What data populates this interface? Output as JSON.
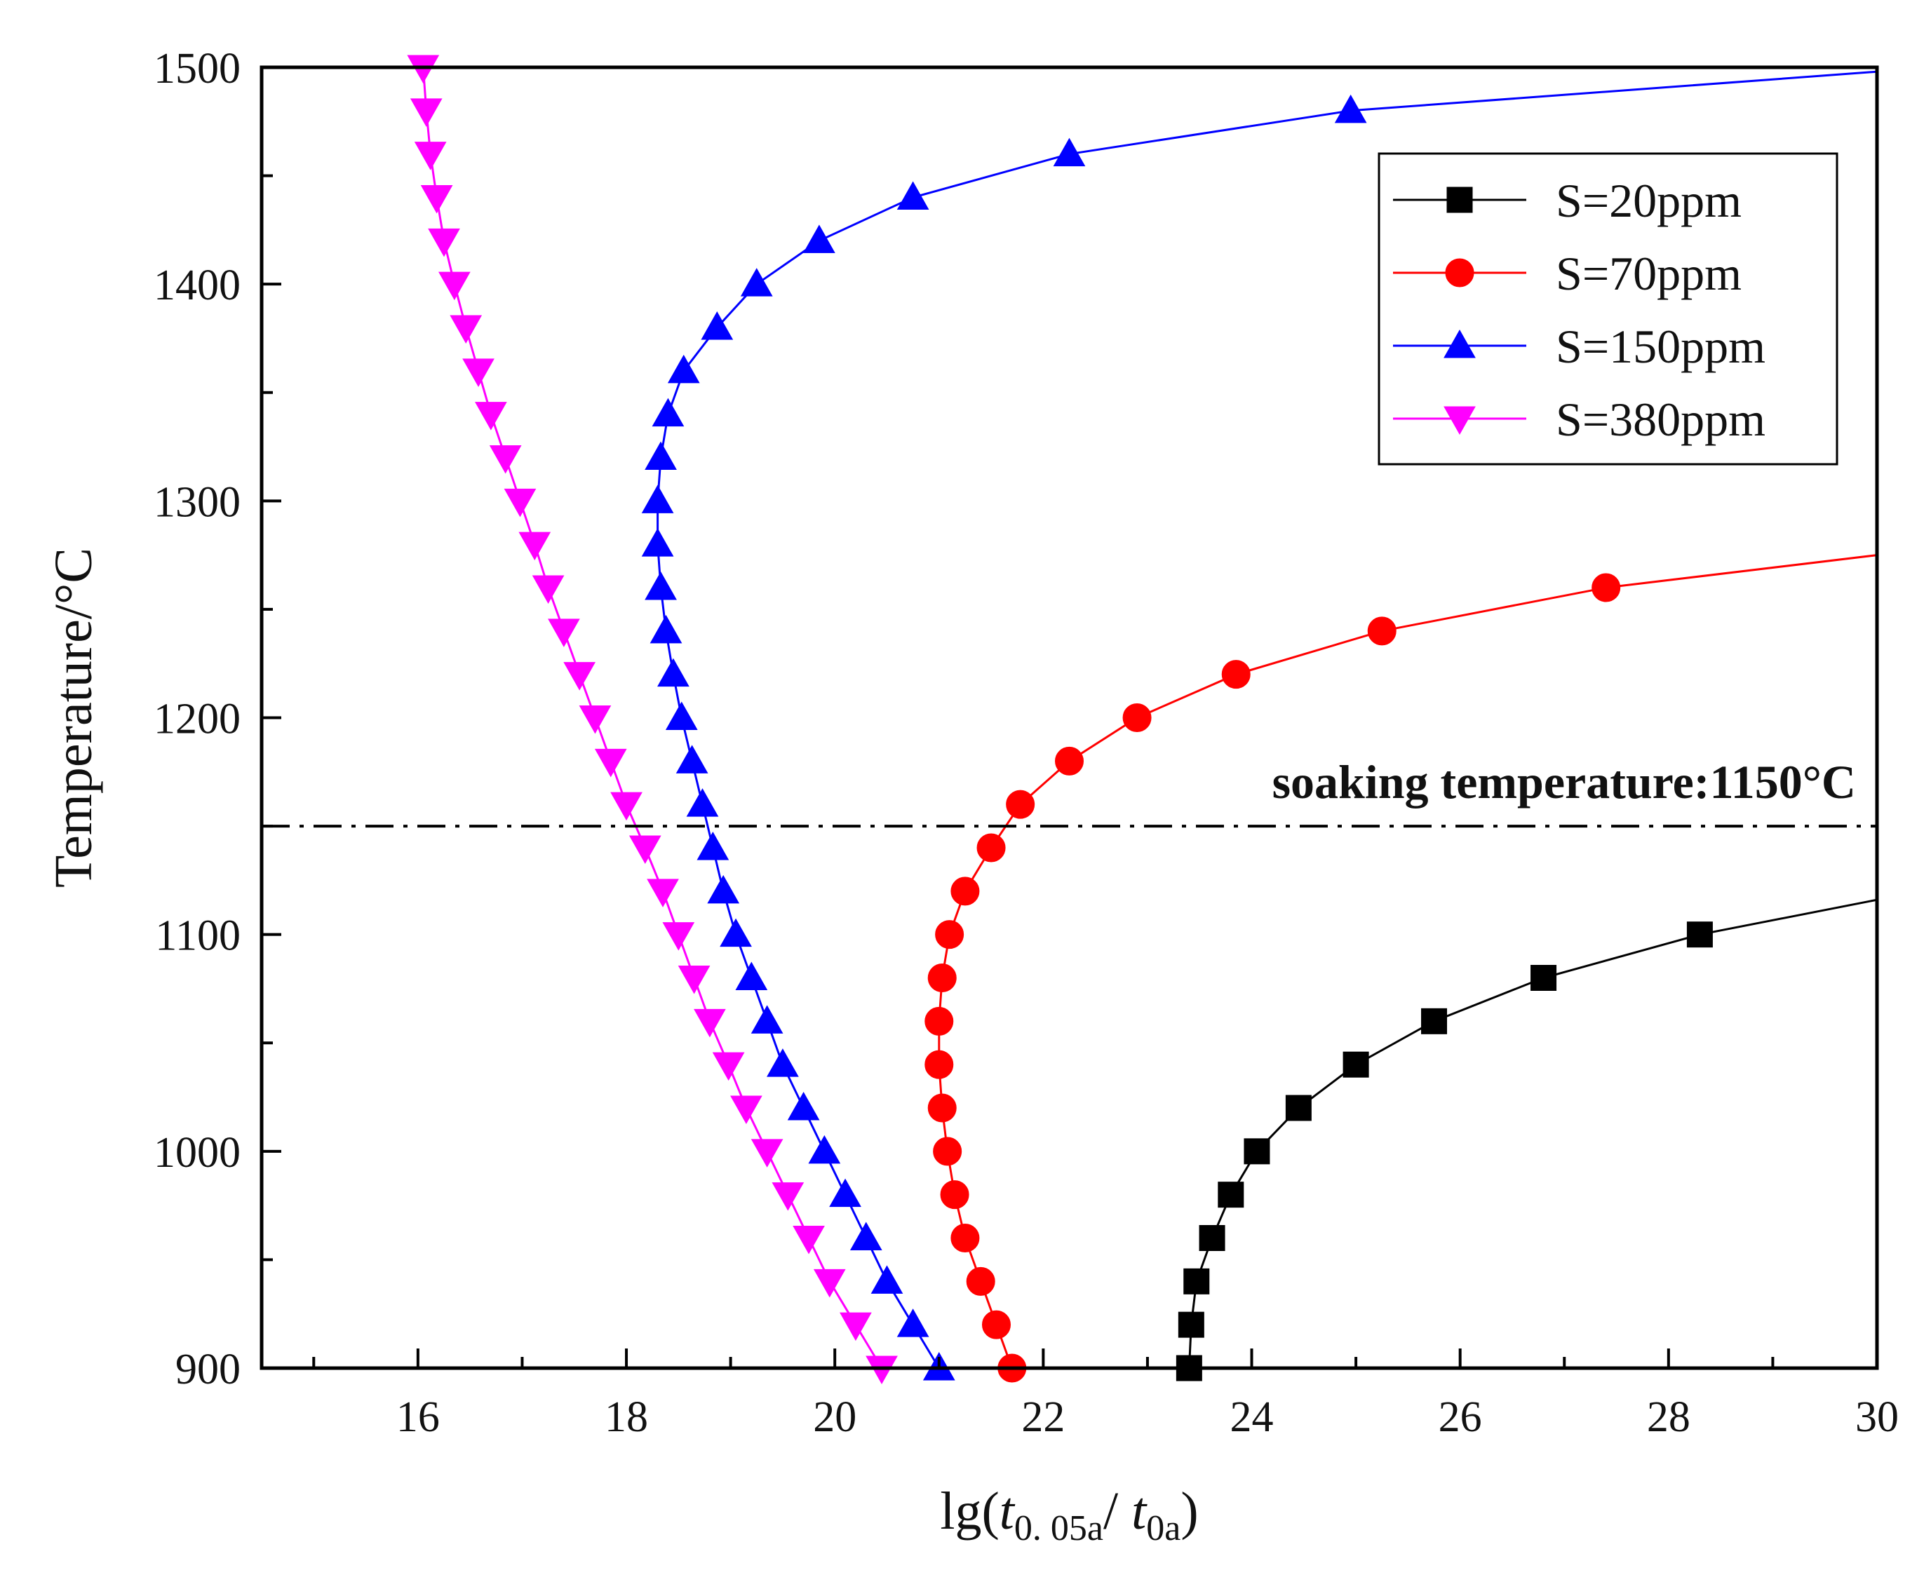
{
  "chart_data": {
    "type": "line",
    "title": "",
    "xlabel": {
      "prefix": "lg(",
      "t1_base": "t",
      "t1_sub": "0. 05a",
      "slash": "/ ",
      "t2_base": "t",
      "t2_sub": "0a",
      "suffix": ")"
    },
    "ylabel": "Temperature/°C",
    "xlim": [
      14.5,
      30
    ],
    "ylim": [
      900,
      1500
    ],
    "xticks": [
      16,
      18,
      20,
      22,
      24,
      26,
      28,
      30
    ],
    "xtick_labels": [
      "16",
      "18",
      "20",
      "22",
      "24",
      "26",
      "28",
      "30"
    ],
    "yticks": [
      900,
      1000,
      1100,
      1200,
      1300,
      1400,
      1500
    ],
    "ytick_labels": [
      "900",
      "1000",
      "1100",
      "1200",
      "1300",
      "1400",
      "1500"
    ],
    "legend_position": "top-right",
    "reference_line": {
      "y": 1150,
      "label": "soaking temperature:1150°C",
      "style": "dash-dot"
    },
    "series": [
      {
        "name": "S=20ppm",
        "color": "#000000",
        "marker": "square",
        "points": [
          [
            23.4,
            900
          ],
          [
            23.42,
            920
          ],
          [
            23.47,
            940
          ],
          [
            23.62,
            960
          ],
          [
            23.8,
            980
          ],
          [
            24.05,
            1000
          ],
          [
            24.45,
            1020
          ],
          [
            25.0,
            1040
          ],
          [
            25.75,
            1060
          ],
          [
            26.8,
            1080
          ],
          [
            28.3,
            1100
          ]
        ],
        "line_extension": [
          [
            30.0,
            1116
          ]
        ]
      },
      {
        "name": "S=70ppm",
        "color": "#ff0000",
        "marker": "circle",
        "points": [
          [
            21.7,
            900
          ],
          [
            21.55,
            920
          ],
          [
            21.4,
            940
          ],
          [
            21.25,
            960
          ],
          [
            21.15,
            980
          ],
          [
            21.08,
            1000
          ],
          [
            21.03,
            1020
          ],
          [
            21.0,
            1040
          ],
          [
            21.0,
            1060
          ],
          [
            21.03,
            1080
          ],
          [
            21.1,
            1100
          ],
          [
            21.25,
            1120
          ],
          [
            21.5,
            1140
          ],
          [
            21.78,
            1160
          ],
          [
            22.25,
            1180
          ],
          [
            22.9,
            1200
          ],
          [
            23.85,
            1220
          ],
          [
            25.25,
            1240
          ],
          [
            27.4,
            1260
          ]
        ],
        "line_extension": [
          [
            30.0,
            1275
          ]
        ]
      },
      {
        "name": "S=150ppm",
        "color": "#0000ff",
        "marker": "triangle-up",
        "points": [
          [
            21.0,
            900
          ],
          [
            20.75,
            920
          ],
          [
            20.5,
            940
          ],
          [
            20.3,
            960
          ],
          [
            20.1,
            980
          ],
          [
            19.9,
            1000
          ],
          [
            19.7,
            1020
          ],
          [
            19.5,
            1040
          ],
          [
            19.35,
            1060
          ],
          [
            19.2,
            1080
          ],
          [
            19.05,
            1100
          ],
          [
            18.93,
            1120
          ],
          [
            18.83,
            1140
          ],
          [
            18.73,
            1160
          ],
          [
            18.63,
            1180
          ],
          [
            18.53,
            1200
          ],
          [
            18.45,
            1220
          ],
          [
            18.38,
            1240
          ],
          [
            18.33,
            1260
          ],
          [
            18.3,
            1280
          ],
          [
            18.3,
            1300
          ],
          [
            18.33,
            1320
          ],
          [
            18.4,
            1340
          ],
          [
            18.55,
            1360
          ],
          [
            18.87,
            1380
          ],
          [
            19.25,
            1400
          ],
          [
            19.85,
            1420
          ],
          [
            20.75,
            1440
          ],
          [
            22.25,
            1460
          ],
          [
            24.95,
            1480
          ]
        ],
        "line_extension": [
          [
            30.0,
            1498
          ]
        ]
      },
      {
        "name": "S=380ppm",
        "color": "#ff00ff",
        "marker": "triangle-down",
        "points": [
          [
            20.45,
            900
          ],
          [
            20.2,
            920
          ],
          [
            19.95,
            940
          ],
          [
            19.75,
            960
          ],
          [
            19.55,
            980
          ],
          [
            19.35,
            1000
          ],
          [
            19.15,
            1020
          ],
          [
            18.98,
            1040
          ],
          [
            18.8,
            1060
          ],
          [
            18.65,
            1080
          ],
          [
            18.5,
            1100
          ],
          [
            18.35,
            1120
          ],
          [
            18.18,
            1140
          ],
          [
            18.0,
            1160
          ],
          [
            17.85,
            1180
          ],
          [
            17.7,
            1200
          ],
          [
            17.55,
            1220
          ],
          [
            17.4,
            1240
          ],
          [
            17.25,
            1260
          ],
          [
            17.12,
            1280
          ],
          [
            16.98,
            1300
          ],
          [
            16.84,
            1320
          ],
          [
            16.7,
            1340
          ],
          [
            16.58,
            1360
          ],
          [
            16.46,
            1380
          ],
          [
            16.35,
            1400
          ],
          [
            16.25,
            1420
          ],
          [
            16.18,
            1440
          ],
          [
            16.12,
            1460
          ],
          [
            16.08,
            1480
          ],
          [
            16.05,
            1500
          ]
        ],
        "line_extension": []
      }
    ]
  }
}
